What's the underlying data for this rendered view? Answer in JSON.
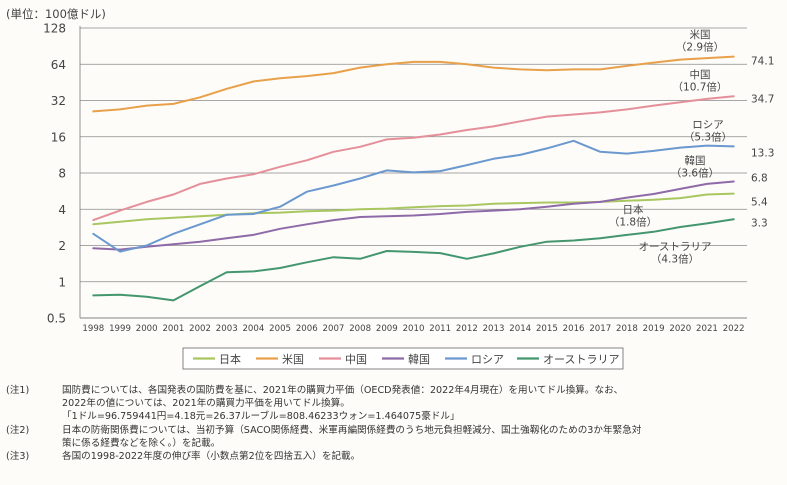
{
  "chart_data": {
    "type": "line",
    "y_scale": "log2",
    "unit_label": "(単位：100億ドル)",
    "ylim": [
      0.5,
      128
    ],
    "y_ticks": [
      0.5,
      1,
      2,
      4,
      8,
      16,
      32,
      64,
      128
    ],
    "y_tick_labels": [
      "0.5",
      "1",
      "2",
      "4",
      "8",
      "16",
      "32",
      "64",
      "128"
    ],
    "x": [
      "1998",
      "1999",
      "2000",
      "2001",
      "2002",
      "2003",
      "2004",
      "2005",
      "2006",
      "2007",
      "2008",
      "2009",
      "2010",
      "2011",
      "2012",
      "2013",
      "2014",
      "2015",
      "2016",
      "2017",
      "2018",
      "2019",
      "2020",
      "2021",
      "2022"
    ],
    "grid": "horizontal",
    "legend_position": "bottom",
    "series": [
      {
        "name": "日本",
        "color": "#a9c760",
        "end_label": "5.4",
        "annotation": [
          "日本",
          "（1.8倍）"
        ],
        "values": [
          3.0,
          3.15,
          3.3,
          3.4,
          3.5,
          3.6,
          3.7,
          3.75,
          3.85,
          3.9,
          4.0,
          4.05,
          4.15,
          4.25,
          4.3,
          4.45,
          4.5,
          4.55,
          4.55,
          4.6,
          4.7,
          4.8,
          4.95,
          5.3,
          5.4
        ]
      },
      {
        "name": "米国",
        "color": "#e9a04a",
        "end_label": "74.1",
        "annotation": [
          "米国",
          "（2.9倍）"
        ],
        "values": [
          26,
          27,
          29,
          30,
          34,
          40,
          46,
          49,
          51,
          54,
          60,
          64,
          67,
          67,
          64,
          60,
          58,
          57,
          58,
          58,
          62,
          66,
          70,
          72,
          74.1
        ]
      },
      {
        "name": "中国",
        "color": "#e48f99",
        "end_label": "34.7",
        "annotation": [
          "中国",
          "（10.7倍）"
        ],
        "values": [
          3.25,
          3.9,
          4.6,
          5.3,
          6.5,
          7.2,
          7.8,
          9.0,
          10.2,
          12.0,
          13.2,
          15.2,
          15.7,
          16.7,
          18.2,
          19.5,
          21.5,
          23.5,
          24.5,
          25.5,
          27.0,
          29.0,
          31.0,
          33.0,
          34.7
        ]
      },
      {
        "name": "韓国",
        "color": "#8f6aa8",
        "end_label": "6.8",
        "annotation": [
          "韓国",
          "（3.6倍）"
        ],
        "values": [
          1.9,
          1.85,
          1.95,
          2.05,
          2.15,
          2.3,
          2.45,
          2.75,
          3.0,
          3.25,
          3.45,
          3.5,
          3.55,
          3.65,
          3.8,
          3.9,
          4.0,
          4.2,
          4.45,
          4.6,
          5.0,
          5.35,
          5.9,
          6.5,
          6.8
        ]
      },
      {
        "name": "ロシア",
        "color": "#6a98cf",
        "end_label": "13.3",
        "annotation": [
          "ロシア",
          "（5.3倍）"
        ],
        "values": [
          2.5,
          1.78,
          2.0,
          2.5,
          3.0,
          3.6,
          3.65,
          4.2,
          5.6,
          6.3,
          7.2,
          8.4,
          8.1,
          8.3,
          9.3,
          10.5,
          11.3,
          12.8,
          14.8,
          12.0,
          11.6,
          12.2,
          13.0,
          13.5,
          13.3
        ]
      },
      {
        "name": "オーストラリア",
        "color": "#44966e",
        "end_label": "3.3",
        "annotation": [
          "オーストラリア",
          "（4.3倍）"
        ],
        "values": [
          0.77,
          0.78,
          0.75,
          0.7,
          0.92,
          1.2,
          1.22,
          1.3,
          1.45,
          1.6,
          1.55,
          1.8,
          1.77,
          1.73,
          1.55,
          1.72,
          1.95,
          2.15,
          2.2,
          2.3,
          2.45,
          2.6,
          2.85,
          3.05,
          3.3
        ]
      }
    ]
  },
  "notes": [
    {
      "tag": "(注1)",
      "lines": [
        "国防費については、各国発表の国防費を基に、2021年の購買力平価（OECD発表値：2022年4月現在）を用いてドル換算。なお、",
        "2022年の値については、2021年の購買力平価を用いてドル換算。",
        "「1ドル=96.759441円=4.18元=26.37ルーブル=808.46233ウォン=1.464075豪ドル」"
      ]
    },
    {
      "tag": "(注2)",
      "lines": [
        "日本の防衛関係費については、当初予算（SACO関係経費、米軍再編関係経費のうち地元負担軽減分、国土強靱化のための3か年緊急対",
        "策に係る経費などを除く。）を記載。"
      ]
    },
    {
      "tag": "(注3)",
      "lines": [
        "各国の1998-2022年度の伸び率（小数点第2位を四捨五入）を記載。"
      ]
    }
  ]
}
